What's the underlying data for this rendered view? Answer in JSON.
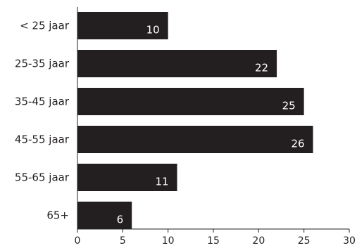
{
  "chart_data": {
    "type": "bar",
    "orientation": "horizontal",
    "categories": [
      "< 25 jaar",
      "25-35 jaar",
      "35-45 jaar",
      "45-55 jaar",
      "55-65 jaar",
      "65+"
    ],
    "values": [
      10,
      22,
      25,
      26,
      11,
      6
    ],
    "data_labels": [
      "10",
      "22",
      "25",
      "26",
      "11",
      "6"
    ],
    "xlim": [
      0,
      30
    ],
    "xticks": [
      0,
      5,
      10,
      15,
      20,
      25,
      30
    ],
    "xtick_labels": [
      "0",
      "5",
      "10",
      "15",
      "20",
      "25",
      "30"
    ],
    "title": "",
    "xlabel": "",
    "ylabel": "",
    "grid": false,
    "legend": "none",
    "colors": {
      "bar": "#231f20",
      "data_label": "#ffffff",
      "axis": "#231f20"
    }
  }
}
